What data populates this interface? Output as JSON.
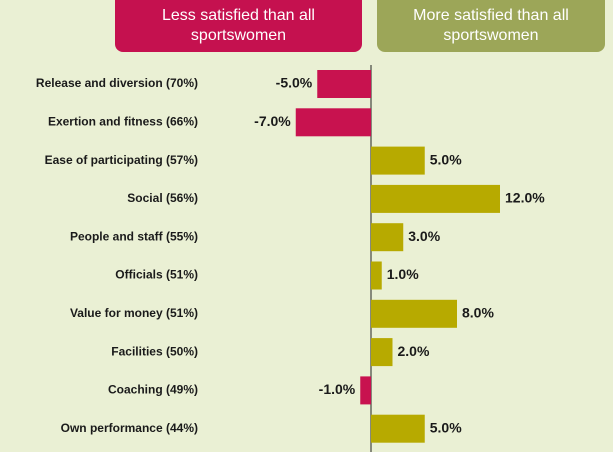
{
  "chart_data": {
    "type": "diverging_bar",
    "headers": [
      {
        "text": "Less satisfied than all sportswomen",
        "color": "#c5114f"
      },
      {
        "text": "More satisfied than all sportswomen",
        "color": "#9ca658"
      }
    ],
    "categories": [
      "Release and diversion (70%)",
      "Exertion and fitness (66%)",
      "Ease of participating (57%)",
      "Social (56%)",
      "People and staff (55%)",
      "Officials (51%)",
      "Value for money (51%)",
      "Facilities (50%)",
      "Coaching (49%)",
      "Own performance (44%)"
    ],
    "values": [
      -5,
      -7,
      5,
      12,
      3,
      1,
      8,
      2,
      -1,
      5
    ],
    "value_labels": [
      "-5.0%",
      "-7.0%",
      "5.0%",
      "12.0%",
      "3.0%",
      "1.0%",
      "8.0%",
      "2.0%",
      "-1.0%",
      "5.0%"
    ],
    "color_negative": "#c8124f",
    "color_positive": "#b7aa00"
  }
}
